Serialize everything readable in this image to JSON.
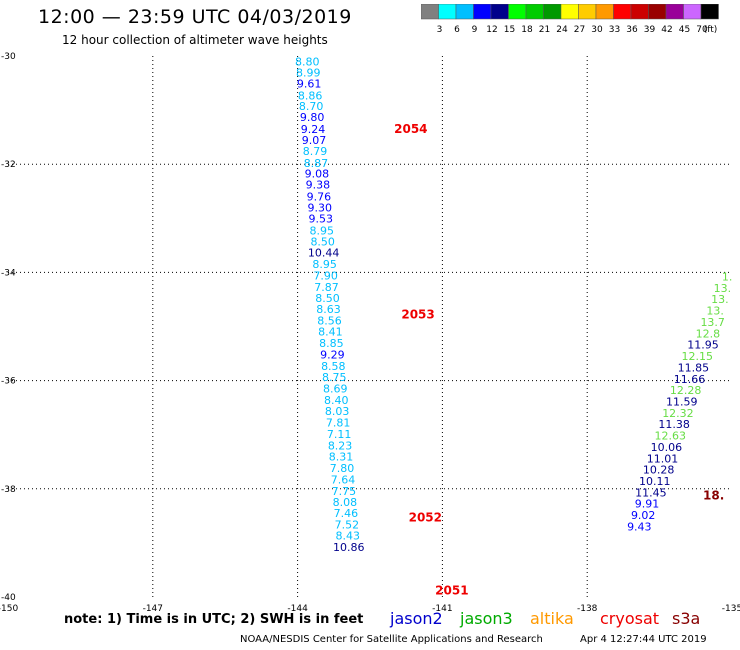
{
  "header": {
    "title": "12:00 — 23:59 UTC 04/03/2019",
    "subtitle": "12 hour collection of altimeter wave heights"
  },
  "colorbar": {
    "unit": "(ft)",
    "bins": [
      {
        "label": "",
        "color": "#808080"
      },
      {
        "label": "3",
        "color": "#00ffff"
      },
      {
        "label": "6",
        "color": "#00bfff"
      },
      {
        "label": "9",
        "color": "#0000ff"
      },
      {
        "label": "12",
        "color": "#00008b"
      },
      {
        "label": "15",
        "color": "#00ff00"
      },
      {
        "label": "18",
        "color": "#00cc00"
      },
      {
        "label": "21",
        "color": "#009900"
      },
      {
        "label": "24",
        "color": "#ffff00"
      },
      {
        "label": "27",
        "color": "#ffcc00"
      },
      {
        "label": "30",
        "color": "#ff9900"
      },
      {
        "label": "33",
        "color": "#ff0000"
      },
      {
        "label": "36",
        "color": "#cc0000"
      },
      {
        "label": "39",
        "color": "#990000"
      },
      {
        "label": "42",
        "color": "#990099"
      },
      {
        "label": "45",
        "color": "#cc66ff"
      },
      {
        "label": "70",
        "color": "#000000"
      }
    ]
  },
  "footer": {
    "note": "note:  1) Time is in UTC;  2) SWH is in feet",
    "credit": "NOAA/NESDIS Center for Satellite Applications and Research",
    "timestamp": "Apr  4 12:27:44 UTC 2019"
  },
  "satellites": [
    {
      "name": "jason2",
      "color": "#0000cc"
    },
    {
      "name": "jason3",
      "color": "#00aa00"
    },
    {
      "name": "altika",
      "color": "#ff9900"
    },
    {
      "name": "cryosat",
      "color": "#ee0000"
    },
    {
      "name": "s3a",
      "color": "#880000"
    }
  ],
  "chart_data": {
    "type": "scatter",
    "title": "12:00 — 23:59 UTC 04/03/2019",
    "xlim": [
      -150,
      -135
    ],
    "ylim": [
      -40,
      -30
    ],
    "x_ticks": [
      {
        "v": -150,
        "label": "-150"
      },
      {
        "v": -147,
        "label": "-147"
      },
      {
        "v": -144,
        "label": "-144"
      },
      {
        "v": -141,
        "label": "-141"
      },
      {
        "v": -138,
        "label": "-138"
      },
      {
        "v": -135,
        "label": "-135"
      }
    ],
    "y_ticks": [
      {
        "v": -30,
        "label": "-30"
      },
      {
        "v": -32,
        "label": "-32"
      },
      {
        "v": -34,
        "label": "-34"
      },
      {
        "v": -36,
        "label": "-36"
      },
      {
        "v": -38,
        "label": "-38"
      },
      {
        "v": -40,
        "label": "-40"
      }
    ],
    "grid": true,
    "time_labels": [
      {
        "text": "2054",
        "lon": -142.0,
        "lat": -31.42,
        "color": "#ee0000"
      },
      {
        "text": "2053",
        "lon": -141.85,
        "lat": -34.85,
        "color": "#ee0000"
      },
      {
        "text": "2052",
        "lon": -141.7,
        "lat": -38.6,
        "color": "#ee0000"
      },
      {
        "text": "2051",
        "lon": -141.15,
        "lat": -39.95,
        "color": "#ee0000"
      },
      {
        "text": "18.",
        "lon": -135.6,
        "lat": -38.2,
        "color": "#880000"
      }
    ],
    "points": [
      {
        "v": "8.80",
        "lon": -143.8,
        "lat": -30.18,
        "c": "#00bfff"
      },
      {
        "v": "8.99",
        "lon": -143.78,
        "lat": -30.38,
        "c": "#00bfff"
      },
      {
        "v": "9.61",
        "lon": -143.76,
        "lat": -30.58,
        "c": "#0000ff"
      },
      {
        "v": "8.86",
        "lon": -143.74,
        "lat": -30.8,
        "c": "#00bfff"
      },
      {
        "v": "8.70",
        "lon": -143.72,
        "lat": -31.0,
        "c": "#00bfff"
      },
      {
        "v": "9.80",
        "lon": -143.7,
        "lat": -31.2,
        "c": "#0000ff"
      },
      {
        "v": "9.24",
        "lon": -143.68,
        "lat": -31.42,
        "c": "#0000ff"
      },
      {
        "v": "9.07",
        "lon": -143.66,
        "lat": -31.63,
        "c": "#0000ff"
      },
      {
        "v": "8.79",
        "lon": -143.64,
        "lat": -31.83,
        "c": "#00bfff"
      },
      {
        "v": "8.87",
        "lon": -143.62,
        "lat": -32.05,
        "c": "#00bfff"
      },
      {
        "v": "9.08",
        "lon": -143.6,
        "lat": -32.25,
        "c": "#0000ff"
      },
      {
        "v": "9.38",
        "lon": -143.58,
        "lat": -32.45,
        "c": "#0000ff"
      },
      {
        "v": "9.76",
        "lon": -143.56,
        "lat": -32.67,
        "c": "#0000ff"
      },
      {
        "v": "9.30",
        "lon": -143.54,
        "lat": -32.87,
        "c": "#0000ff"
      },
      {
        "v": "9.53",
        "lon": -143.52,
        "lat": -33.08,
        "c": "#0000ff"
      },
      {
        "v": "8.95",
        "lon": -143.5,
        "lat": -33.3,
        "c": "#00bfff"
      },
      {
        "v": "8.50",
        "lon": -143.48,
        "lat": -33.5,
        "c": "#00bfff"
      },
      {
        "v": "10.44",
        "lon": -143.46,
        "lat": -33.71,
        "c": "#00008b"
      },
      {
        "v": "8.95",
        "lon": -143.44,
        "lat": -33.92,
        "c": "#00bfff"
      },
      {
        "v": "7.90",
        "lon": -143.42,
        "lat": -34.13,
        "c": "#00bfff"
      },
      {
        "v": "7.87",
        "lon": -143.4,
        "lat": -34.34,
        "c": "#00bfff"
      },
      {
        "v": "8.50",
        "lon": -143.38,
        "lat": -34.55,
        "c": "#00bfff"
      },
      {
        "v": "8.63",
        "lon": -143.36,
        "lat": -34.75,
        "c": "#00bfff"
      },
      {
        "v": "8.56",
        "lon": -143.34,
        "lat": -34.96,
        "c": "#00bfff"
      },
      {
        "v": "8.41",
        "lon": -143.32,
        "lat": -35.17,
        "c": "#00bfff"
      },
      {
        "v": "8.85",
        "lon": -143.3,
        "lat": -35.38,
        "c": "#00bfff"
      },
      {
        "v": "9.29",
        "lon": -143.28,
        "lat": -35.59,
        "c": "#0000ff"
      },
      {
        "v": "8.58",
        "lon": -143.26,
        "lat": -35.8,
        "c": "#00bfff"
      },
      {
        "v": "8.75",
        "lon": -143.24,
        "lat": -36.01,
        "c": "#00bfff"
      },
      {
        "v": "8.69",
        "lon": -143.22,
        "lat": -36.22,
        "c": "#00bfff"
      },
      {
        "v": "8.40",
        "lon": -143.2,
        "lat": -36.43,
        "c": "#00bfff"
      },
      {
        "v": "8.03",
        "lon": -143.18,
        "lat": -36.64,
        "c": "#00bfff"
      },
      {
        "v": "7.81",
        "lon": -143.16,
        "lat": -36.85,
        "c": "#00bfff"
      },
      {
        "v": "7.11",
        "lon": -143.14,
        "lat": -37.06,
        "c": "#00bfff"
      },
      {
        "v": "8.23",
        "lon": -143.12,
        "lat": -37.27,
        "c": "#00bfff"
      },
      {
        "v": "8.31",
        "lon": -143.1,
        "lat": -37.48,
        "c": "#00bfff"
      },
      {
        "v": "7.80",
        "lon": -143.08,
        "lat": -37.69,
        "c": "#00bfff"
      },
      {
        "v": "7.64",
        "lon": -143.06,
        "lat": -37.9,
        "c": "#00bfff"
      },
      {
        "v": "7.75",
        "lon": -143.04,
        "lat": -38.11,
        "c": "#00bfff"
      },
      {
        "v": "8.08",
        "lon": -143.02,
        "lat": -38.32,
        "c": "#00bfff"
      },
      {
        "v": "7.46",
        "lon": -143.0,
        "lat": -38.52,
        "c": "#00bfff"
      },
      {
        "v": "7.52",
        "lon": -142.98,
        "lat": -38.73,
        "c": "#00bfff"
      },
      {
        "v": "8.43",
        "lon": -142.96,
        "lat": -38.94,
        "c": "#00bfff"
      },
      {
        "v": "10.86",
        "lon": -142.94,
        "lat": -39.15,
        "c": "#00008b"
      },
      {
        "v": "1.",
        "lon": -135.1,
        "lat": -34.15,
        "c": "#66dd44"
      },
      {
        "v": "13.",
        "lon": -135.2,
        "lat": -34.36,
        "c": "#66dd44"
      },
      {
        "v": "13.",
        "lon": -135.25,
        "lat": -34.57,
        "c": "#66dd44"
      },
      {
        "v": "13.",
        "lon": -135.35,
        "lat": -34.78,
        "c": "#66dd44"
      },
      {
        "v": "13.7",
        "lon": -135.4,
        "lat": -34.99,
        "c": "#66dd44"
      },
      {
        "v": "12.8",
        "lon": -135.5,
        "lat": -35.2,
        "c": "#66dd44"
      },
      {
        "v": "11.95",
        "lon": -135.6,
        "lat": -35.41,
        "c": "#00008b"
      },
      {
        "v": "12.15",
        "lon": -135.72,
        "lat": -35.62,
        "c": "#66dd44"
      },
      {
        "v": "11.85",
        "lon": -135.8,
        "lat": -35.83,
        "c": "#00008b"
      },
      {
        "v": "11.66",
        "lon": -135.88,
        "lat": -36.04,
        "c": "#00008b"
      },
      {
        "v": "12.28",
        "lon": -135.96,
        "lat": -36.25,
        "c": "#66dd44"
      },
      {
        "v": "11.59",
        "lon": -136.04,
        "lat": -36.46,
        "c": "#00008b"
      },
      {
        "v": "12.32",
        "lon": -136.12,
        "lat": -36.67,
        "c": "#66dd44"
      },
      {
        "v": "11.38",
        "lon": -136.2,
        "lat": -36.88,
        "c": "#00008b"
      },
      {
        "v": "12.63",
        "lon": -136.28,
        "lat": -37.09,
        "c": "#66dd44"
      },
      {
        "v": "10.06",
        "lon": -136.36,
        "lat": -37.3,
        "c": "#00008b"
      },
      {
        "v": "11.01",
        "lon": -136.44,
        "lat": -37.51,
        "c": "#00008b"
      },
      {
        "v": "10.28",
        "lon": -136.52,
        "lat": -37.72,
        "c": "#00008b"
      },
      {
        "v": "10.11",
        "lon": -136.6,
        "lat": -37.93,
        "c": "#00008b"
      },
      {
        "v": "11.45",
        "lon": -136.68,
        "lat": -38.14,
        "c": "#00008b"
      },
      {
        "v": "9.91",
        "lon": -136.76,
        "lat": -38.35,
        "c": "#0000ff"
      },
      {
        "v": "9.02",
        "lon": -136.84,
        "lat": -38.56,
        "c": "#0000ff"
      },
      {
        "v": "9.43",
        "lon": -136.92,
        "lat": -38.77,
        "c": "#0000ff"
      }
    ]
  }
}
